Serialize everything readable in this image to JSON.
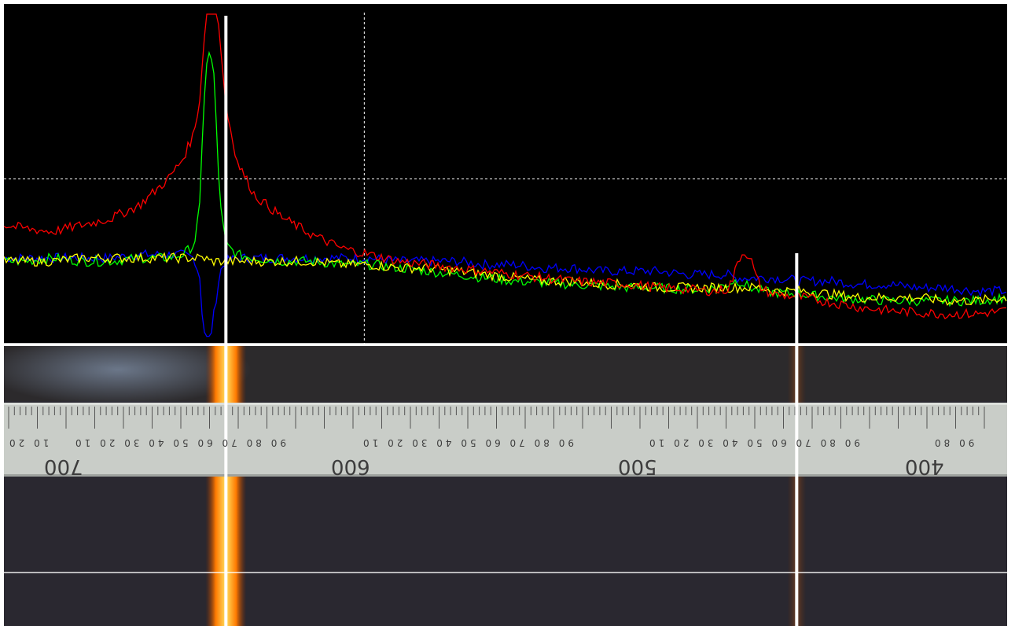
{
  "chart_data": {
    "type": "line",
    "title": "",
    "xlabel": "",
    "ylabel": "",
    "x_direction": "descending",
    "xlim": [
      737,
      389
    ],
    "ylim": [
      0,
      1
    ],
    "grid": "dashed crosshair",
    "legend": "none",
    "x": [
      737,
      730,
      720,
      710,
      700,
      690,
      685,
      680,
      675,
      671,
      669,
      668,
      667,
      666,
      665,
      664,
      663,
      662,
      660,
      656,
      650,
      640,
      630,
      620,
      610,
      600,
      590,
      580,
      570,
      560,
      550,
      540,
      530,
      520,
      510,
      500,
      495,
      490,
      486,
      484,
      482,
      480,
      478,
      476,
      474,
      470,
      460,
      450,
      440,
      430,
      420,
      410,
      400,
      389
    ],
    "series": [
      {
        "color": "#ff0000",
        "values": [
          0.36,
          0.35,
          0.34,
          0.36,
          0.38,
          0.42,
          0.46,
          0.5,
          0.56,
          0.64,
          0.75,
          0.87,
          1.0,
          1.0,
          1.0,
          1.0,
          1.0,
          0.92,
          0.72,
          0.55,
          0.45,
          0.38,
          0.33,
          0.29,
          0.27,
          0.25,
          0.24,
          0.23,
          0.22,
          0.21,
          0.2,
          0.19,
          0.185,
          0.18,
          0.17,
          0.165,
          0.162,
          0.16,
          0.165,
          0.2,
          0.26,
          0.28,
          0.26,
          0.2,
          0.165,
          0.15,
          0.14,
          0.125,
          0.11,
          0.1,
          0.095,
          0.09,
          0.09,
          0.1
        ]
      },
      {
        "color": "#00ff00",
        "values": [
          0.25,
          0.25,
          0.26,
          0.25,
          0.25,
          0.26,
          0.26,
          0.26,
          0.27,
          0.3,
          0.42,
          0.66,
          0.84,
          0.88,
          0.86,
          0.8,
          0.6,
          0.42,
          0.3,
          0.27,
          0.26,
          0.25,
          0.25,
          0.24,
          0.24,
          0.23,
          0.22,
          0.21,
          0.2,
          0.19,
          0.185,
          0.18,
          0.175,
          0.17,
          0.17,
          0.165,
          0.165,
          0.17,
          0.18,
          0.19,
          0.19,
          0.18,
          0.17,
          0.165,
          0.16,
          0.155,
          0.15,
          0.14,
          0.135,
          0.13,
          0.13,
          0.13,
          0.13,
          0.14
        ]
      },
      {
        "color": "#ffff00",
        "values": [
          0.25,
          0.25,
          0.25,
          0.26,
          0.26,
          0.26,
          0.26,
          0.26,
          0.26,
          0.26,
          0.26,
          0.26,
          0.26,
          0.25,
          0.25,
          0.25,
          0.25,
          0.25,
          0.25,
          0.25,
          0.25,
          0.25,
          0.25,
          0.24,
          0.24,
          0.23,
          0.23,
          0.22,
          0.21,
          0.2,
          0.19,
          0.19,
          0.18,
          0.18,
          0.17,
          0.17,
          0.17,
          0.17,
          0.17,
          0.17,
          0.17,
          0.17,
          0.17,
          0.17,
          0.17,
          0.16,
          0.16,
          0.15,
          0.14,
          0.14,
          0.14,
          0.13,
          0.13,
          0.14
        ]
      },
      {
        "color": "#0000ff",
        "values": [
          0.26,
          0.26,
          0.26,
          0.26,
          0.26,
          0.27,
          0.27,
          0.27,
          0.27,
          0.26,
          0.2,
          0.06,
          0.02,
          0.01,
          0.04,
          0.1,
          0.16,
          0.22,
          0.25,
          0.26,
          0.26,
          0.26,
          0.26,
          0.26,
          0.26,
          0.25,
          0.25,
          0.25,
          0.24,
          0.24,
          0.23,
          0.23,
          0.22,
          0.22,
          0.22,
          0.21,
          0.21,
          0.21,
          0.21,
          0.2,
          0.2,
          0.2,
          0.2,
          0.2,
          0.2,
          0.2,
          0.19,
          0.19,
          0.18,
          0.18,
          0.17,
          0.17,
          0.16,
          0.16
        ]
      }
    ],
    "markers": [
      660,
      462
    ],
    "crosshair": {
      "x": 612,
      "y": 0.5
    }
  },
  "ruler": {
    "major_labels": [
      "700",
      "600",
      "500",
      "400"
    ],
    "minor_labels": [
      "10 20",
      "90 80 70 60 50 40 30 20 10",
      "90 80 70 60 50 40 30 20 10",
      "90 80 70 60 50 40 30 20 10",
      "90 80"
    ]
  },
  "colors": {
    "plot_background": "#000000",
    "grid": "#ffffff",
    "marker": "#ffffff",
    "ruler": "#c9cdc8",
    "spectrum_band": "#ffb21a"
  }
}
